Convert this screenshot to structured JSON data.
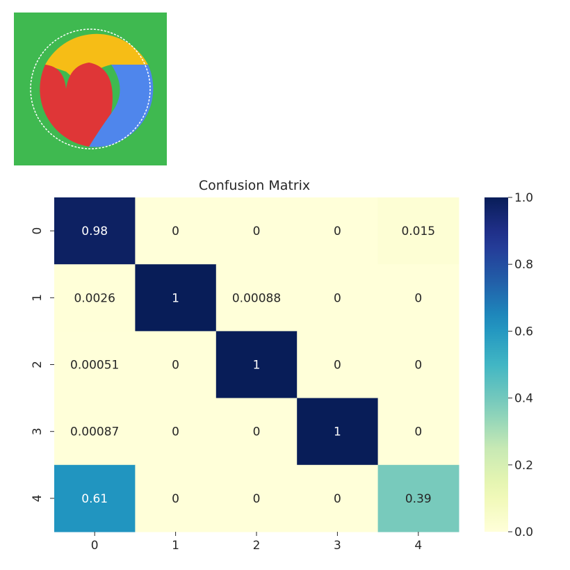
{
  "thumbnail": {
    "background_color": "#3fb950",
    "colors": [
      "#f6bd16",
      "#df3637",
      "#4f86ec"
    ]
  },
  "chart_data": {
    "type": "heatmap",
    "title": "Confusion Matrix",
    "xlabel": "",
    "ylabel": "",
    "x_tick_labels": [
      "0",
      "1",
      "2",
      "3",
      "4"
    ],
    "y_tick_labels": [
      "0",
      "1",
      "2",
      "3",
      "4"
    ],
    "values": [
      [
        0.98,
        0,
        0,
        0,
        0.015
      ],
      [
        0.0026,
        1,
        0.00088,
        0,
        0
      ],
      [
        0.00051,
        0,
        1,
        0,
        0
      ],
      [
        0.00087,
        0,
        0,
        1,
        0
      ],
      [
        0.61,
        0,
        0,
        0,
        0.39
      ]
    ],
    "annotations": [
      [
        "0.98",
        "0",
        "0",
        "0",
        "0.015"
      ],
      [
        "0.0026",
        "1",
        "0.00088",
        "0",
        "0"
      ],
      [
        "0.00051",
        "0",
        "1",
        "0",
        "0"
      ],
      [
        "0.00087",
        "0",
        "0",
        "1",
        "0"
      ],
      [
        "0.61",
        "0",
        "0",
        "0",
        "0.39"
      ]
    ],
    "colormap": "YlGnBu",
    "colorbar": {
      "range": [
        0.0,
        1.0
      ],
      "ticks": [
        "0.0",
        "0.2",
        "0.4",
        "0.6",
        "0.8",
        "1.0"
      ]
    }
  }
}
